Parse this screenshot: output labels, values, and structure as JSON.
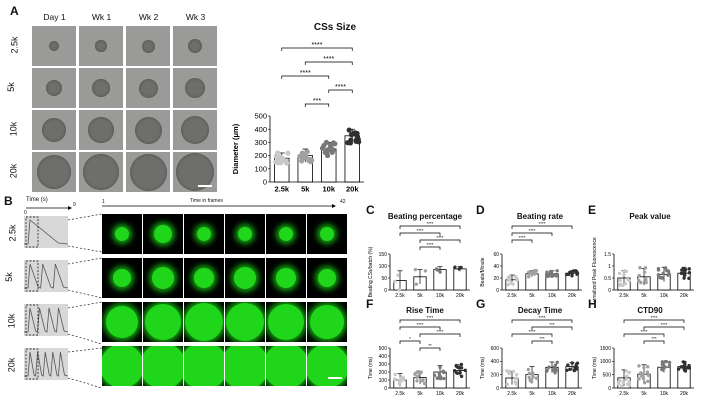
{
  "panels": {
    "A": "A",
    "B": "B",
    "C": "C",
    "D": "D",
    "E": "E",
    "F": "F",
    "G": "G",
    "H": "H"
  },
  "panelA": {
    "col_labels": [
      "Day 1",
      "Wk 1",
      "Wk 2",
      "Wk 3"
    ],
    "row_labels": [
      "2.5k",
      "5k",
      "10k",
      "20k"
    ]
  },
  "panelB": {
    "row_labels": [
      "2.5k",
      "5k",
      "10k",
      "20k"
    ],
    "time_s_label": "Time (s)",
    "time_s_start": "0",
    "time_s_end": "9",
    "frames_label": "Time in frames",
    "frames_start": "1",
    "frames_end": "42"
  },
  "significance": "****",
  "chart_data": [
    {
      "id": "cs-size",
      "type": "bar",
      "title": "CSs Size",
      "ylabel": "Diameter (μm)",
      "categories": [
        "2.5k",
        "5k",
        "10k",
        "20k"
      ],
      "values": [
        180,
        200,
        250,
        350
      ],
      "errors": [
        40,
        50,
        50,
        50
      ],
      "ylim": [
        0,
        500
      ],
      "yticks": [
        0,
        100,
        200,
        300,
        400,
        500
      ],
      "colors": [
        "#d0d0d0",
        "#a8a8a8",
        "#7a7a7a",
        "#3a3a3a"
      ],
      "brackets": [
        {
          "from": 0,
          "to": 3,
          "label": "****"
        },
        {
          "from": 1,
          "to": 3,
          "label": "****"
        },
        {
          "from": 0,
          "to": 2,
          "label": "****"
        },
        {
          "from": 2,
          "to": 3,
          "label": "****"
        },
        {
          "from": 1,
          "to": 2,
          "label": "***"
        }
      ]
    },
    {
      "id": "beating-percentage",
      "type": "bar",
      "title": "Beating percentage",
      "ylabel": "Beating CSs/batch (%)",
      "categories": [
        "2.5k",
        "5k",
        "10k",
        "20k"
      ],
      "values": [
        40,
        55,
        85,
        88
      ],
      "errors": [
        40,
        30,
        12,
        10
      ],
      "ylim": [
        0,
        150
      ],
      "yticks": [
        0,
        50,
        100,
        150
      ],
      "brackets": [
        {
          "from": 0,
          "to": 3,
          "label": "****"
        },
        {
          "from": 0,
          "to": 2,
          "label": "****"
        },
        {
          "from": 1,
          "to": 3,
          "label": "****"
        },
        {
          "from": 1,
          "to": 2,
          "label": "****"
        }
      ]
    },
    {
      "id": "beating-rate",
      "type": "bar",
      "title": "Beating rate",
      "ylabel": "Beats/Minute",
      "categories": [
        "2.5k",
        "5k",
        "10k",
        "20k"
      ],
      "values": [
        17,
        27,
        27,
        28
      ],
      "errors": [
        8,
        5,
        5,
        4
      ],
      "ylim": [
        0,
        60
      ],
      "yticks": [
        0,
        20,
        40,
        60
      ],
      "brackets": [
        {
          "from": 0,
          "to": 3,
          "label": "****"
        },
        {
          "from": 0,
          "to": 2,
          "label": "****"
        },
        {
          "from": 0,
          "to": 1,
          "label": "****"
        }
      ]
    },
    {
      "id": "peak-value",
      "type": "bar",
      "title": "Peak value",
      "ylabel": "Normalized Peak Fluorescence",
      "categories": [
        "2.5k",
        "5k",
        "10k",
        "20k"
      ],
      "values": [
        0.5,
        0.55,
        0.65,
        0.7
      ],
      "errors": [
        0.3,
        0.35,
        0.3,
        0.25
      ],
      "ylim": [
        0,
        1.5
      ],
      "yticks": [
        0,
        0.5,
        1.0,
        1.5
      ],
      "brackets": []
    },
    {
      "id": "rise-time",
      "type": "bar",
      "title": "Rise Time",
      "ylabel": "Time (ms)",
      "categories": [
        "2.5k",
        "5k",
        "10k",
        "20k"
      ],
      "values": [
        100,
        130,
        200,
        220
      ],
      "errors": [
        80,
        80,
        80,
        70
      ],
      "ylim": [
        0,
        500
      ],
      "yticks": [
        0,
        100,
        200,
        300,
        400,
        500
      ],
      "brackets": [
        {
          "from": 0,
          "to": 3,
          "label": "****"
        },
        {
          "from": 0,
          "to": 2,
          "label": "****"
        },
        {
          "from": 1,
          "to": 3,
          "label": "****"
        },
        {
          "from": 0,
          "to": 1,
          "label": "*"
        },
        {
          "from": 1,
          "to": 2,
          "label": "**"
        }
      ]
    },
    {
      "id": "decay-time",
      "type": "bar",
      "title": "Decay Time",
      "ylabel": "Time (ms)",
      "categories": [
        "2.5k",
        "5k",
        "10k",
        "20k"
      ],
      "values": [
        150,
        200,
        310,
        320
      ],
      "errors": [
        100,
        120,
        80,
        60
      ],
      "ylim": [
        0,
        600
      ],
      "yticks": [
        0,
        200,
        400,
        600
      ],
      "brackets": [
        {
          "from": 0,
          "to": 3,
          "label": "****"
        },
        {
          "from": 1,
          "to": 3,
          "label": "***"
        },
        {
          "from": 0,
          "to": 2,
          "label": "****"
        },
        {
          "from": 1,
          "to": 2,
          "label": "***"
        }
      ]
    },
    {
      "id": "ctd90",
      "type": "bar",
      "title": "CTD90",
      "ylabel": "Time (ms)",
      "categories": [
        "2.5k",
        "5k",
        "10k",
        "20k"
      ],
      "values": [
        380,
        520,
        780,
        800
      ],
      "errors": [
        300,
        350,
        200,
        200
      ],
      "ylim": [
        0,
        1500
      ],
      "yticks": [
        0,
        500,
        1000,
        1500
      ],
      "brackets": [
        {
          "from": 0,
          "to": 3,
          "label": "****"
        },
        {
          "from": 1,
          "to": 3,
          "label": "****"
        },
        {
          "from": 0,
          "to": 2,
          "label": "****"
        },
        {
          "from": 1,
          "to": 2,
          "label": "***"
        }
      ]
    }
  ]
}
